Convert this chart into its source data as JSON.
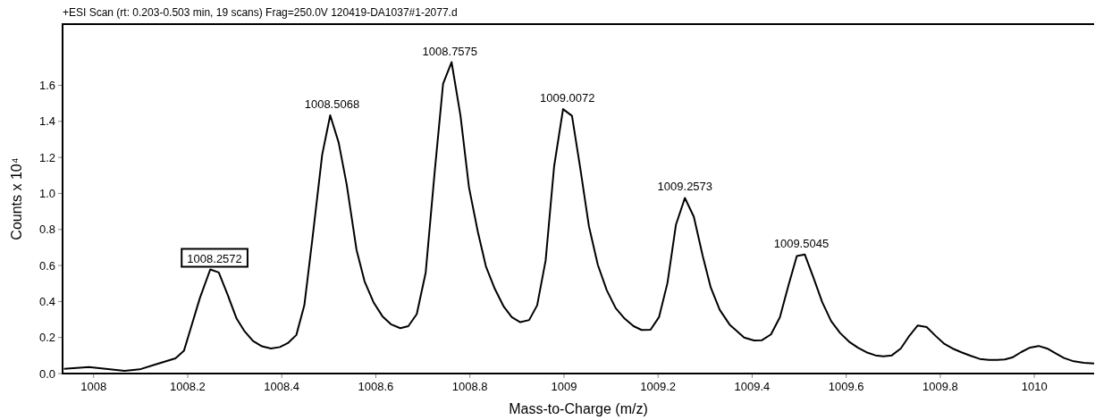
{
  "chart_data": {
    "type": "line",
    "title": "+ESI Scan (rt: 0.203-0.503 min, 19 scans) Frag=250.0V 120419-DA1037#1-2077.d",
    "xlabel": "Mass-to-Charge (m/z)",
    "ylabel": "Counts x 10⁴",
    "xlim": [
      1007.934,
      1010.127
    ],
    "xticks": [
      1008,
      1008.2,
      1008.4,
      1008.6,
      1008.8,
      1009,
      1009.2,
      1009.4,
      1009.6,
      1009.8,
      1010
    ],
    "ylim": [
      0,
      1.94
    ],
    "yticks": [
      {
        "value": 0,
        "label": "0.0"
      },
      0.2,
      0.4,
      0.6,
      0.8,
      {
        "value": 1,
        "label": "1.0"
      },
      1.2,
      1.4,
      1.6
    ],
    "grid": false,
    "marker": "none",
    "line_style": "solid",
    "series": [
      {
        "color": "#000000",
        "x": [
          1007.937,
          1007.99,
          1008.066,
          1008.098,
          1008.129,
          1008.174,
          1008.192,
          1008.206,
          1008.226,
          1008.248,
          1008.266,
          1008.285,
          1008.304,
          1008.32,
          1008.339,
          1008.358,
          1008.377,
          1008.396,
          1008.413,
          1008.431,
          1008.448,
          1008.465,
          1008.486,
          1008.503,
          1008.521,
          1008.538,
          1008.559,
          1008.576,
          1008.595,
          1008.614,
          1008.633,
          1008.652,
          1008.669,
          1008.687,
          1008.706,
          1008.725,
          1008.743,
          1008.761,
          1008.78,
          1008.798,
          1008.817,
          1008.834,
          1008.853,
          1008.872,
          1008.889,
          1008.907,
          1008.926,
          1008.943,
          1008.961,
          1008.979,
          1008.998,
          1009.017,
          1009.035,
          1009.053,
          1009.072,
          1009.091,
          1009.11,
          1009.129,
          1009.148,
          1009.165,
          1009.184,
          1009.202,
          1009.22,
          1009.238,
          1009.257,
          1009.276,
          1009.295,
          1009.312,
          1009.331,
          1009.352,
          1009.383,
          1009.404,
          1009.421,
          1009.44,
          1009.459,
          1009.477,
          1009.495,
          1009.512,
          1009.531,
          1009.549,
          1009.568,
          1009.587,
          1009.606,
          1009.625,
          1009.643,
          1009.662,
          1009.679,
          1009.697,
          1009.716,
          1009.733,
          1009.752,
          1009.771,
          1009.79,
          1009.809,
          1009.826,
          1009.845,
          1009.865,
          1009.884,
          1009.903,
          1009.921,
          1009.937,
          1009.953,
          1009.972,
          1009.991,
          1010.009,
          1010.027,
          1010.046,
          1010.063,
          1010.081,
          1010.105,
          1010.127
        ],
        "values": [
          0.026,
          0.036,
          0.015,
          0.023,
          0.048,
          0.084,
          0.126,
          0.247,
          0.42,
          0.578,
          0.561,
          0.437,
          0.305,
          0.238,
          0.18,
          0.151,
          0.139,
          0.147,
          0.169,
          0.214,
          0.379,
          0.745,
          1.216,
          1.434,
          1.282,
          1.05,
          0.686,
          0.512,
          0.396,
          0.318,
          0.272,
          0.252,
          0.263,
          0.33,
          0.561,
          1.117,
          1.61,
          1.729,
          1.431,
          1.034,
          0.785,
          0.595,
          0.47,
          0.371,
          0.313,
          0.285,
          0.297,
          0.379,
          0.628,
          1.15,
          1.468,
          1.431,
          1.133,
          0.818,
          0.603,
          0.462,
          0.363,
          0.305,
          0.263,
          0.242,
          0.243,
          0.313,
          0.503,
          0.826,
          0.975,
          0.871,
          0.652,
          0.478,
          0.354,
          0.272,
          0.2,
          0.184,
          0.185,
          0.217,
          0.313,
          0.487,
          0.652,
          0.661,
          0.528,
          0.396,
          0.291,
          0.225,
          0.177,
          0.143,
          0.118,
          0.101,
          0.096,
          0.101,
          0.139,
          0.205,
          0.267,
          0.258,
          0.209,
          0.164,
          0.139,
          0.118,
          0.098,
          0.081,
          0.076,
          0.076,
          0.078,
          0.089,
          0.119,
          0.144,
          0.153,
          0.139,
          0.111,
          0.086,
          0.07,
          0.06,
          0.056
        ]
      }
    ],
    "annotations": [
      {
        "text": "1008.2572",
        "x": 1008.2572,
        "y": 0.578
      },
      {
        "text": "1008.5068",
        "x": 1008.5068,
        "y": 1.434
      },
      {
        "text": "1008.7575",
        "x": 1008.7575,
        "y": 1.729
      },
      {
        "text": "1009.0072",
        "x": 1009.0072,
        "y": 1.468
      },
      {
        "text": "1009.2573",
        "x": 1009.2573,
        "y": 0.975
      },
      {
        "text": "1009.5045",
        "x": 1009.5045,
        "y": 0.661
      }
    ]
  }
}
